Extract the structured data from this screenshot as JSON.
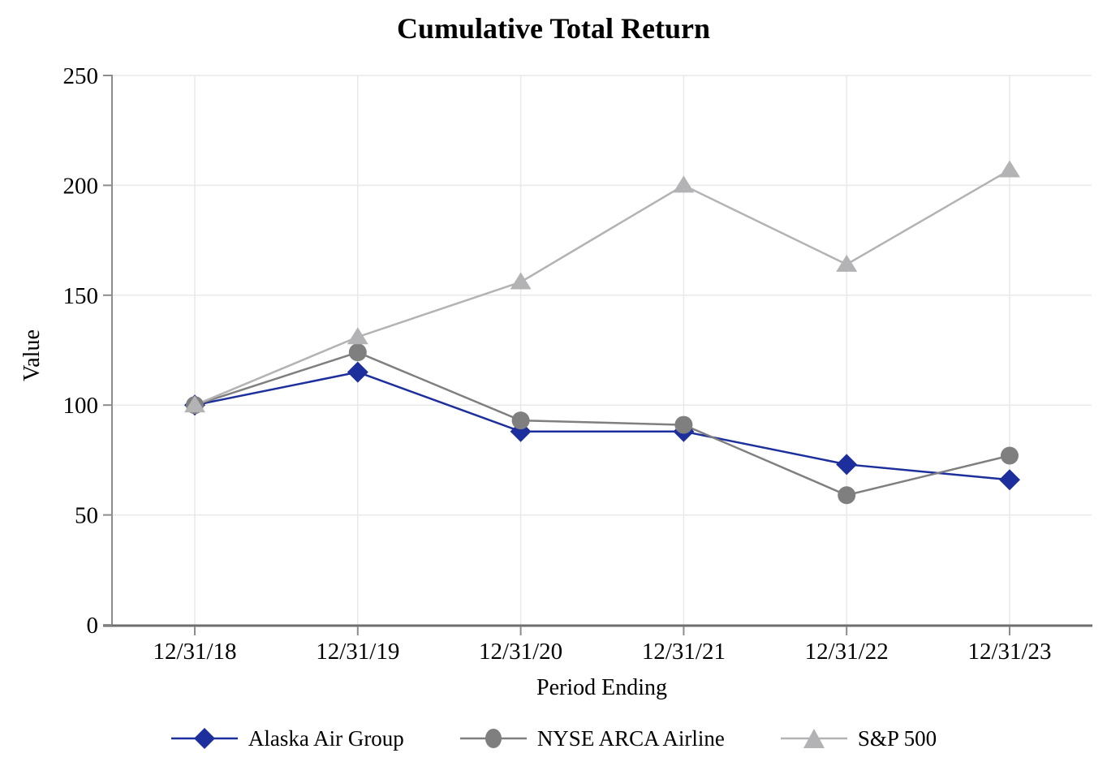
{
  "chart_data": {
    "type": "line",
    "title": "Cumulative Total Return",
    "xlabel": "Period Ending",
    "ylabel": "Value",
    "categories": [
      "12/31/18",
      "12/31/19",
      "12/31/20",
      "12/31/21",
      "12/31/22",
      "12/31/23"
    ],
    "y_ticks": [
      0,
      50,
      100,
      150,
      200,
      250
    ],
    "ylim": [
      0,
      250
    ],
    "grid": true,
    "legend_position": "bottom",
    "series": [
      {
        "name": "Alaska Air Group",
        "marker": "diamond",
        "color": "#1C2F9C",
        "values": [
          100,
          115,
          88,
          88,
          73,
          66
        ]
      },
      {
        "name": "NYSE ARCA Airline",
        "marker": "circle",
        "color": "#7F7F7F",
        "values": [
          100,
          124,
          93,
          91,
          59,
          77
        ]
      },
      {
        "name": "S&P 500",
        "marker": "triangle",
        "color": "#B3B3B6",
        "values": [
          100,
          131,
          156,
          200,
          164,
          207
        ]
      }
    ]
  },
  "colors": {
    "background": "#FFFFFF",
    "gridline": "#E9E9E9",
    "x_axis_line": "#6E6E6E",
    "y_axis_line": "#8C8C8C",
    "text": "#000000"
  }
}
